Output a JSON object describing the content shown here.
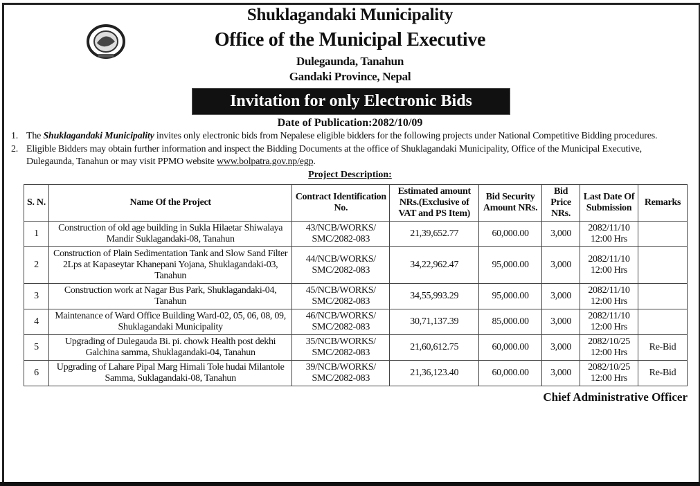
{
  "header": {
    "municipality": "Shuklagandaki Municipality",
    "office": "Office of the Municipal Executive",
    "address_line1": "Dulegaunda, Tanahun",
    "address_line2": "Gandaki Province, Nepal",
    "banner": "Invitation for only Electronic Bids",
    "publication_date": "Date of Publication:2082/10/09"
  },
  "paragraphs": [
    {
      "num": "1.",
      "pre": "The ",
      "emph": "Shuklagandaki Municipality",
      "post": " invites only electronic bids from Nepalese eligible bidders for the following projects under National Competitive Bidding procedures."
    },
    {
      "num": "2.",
      "pre": "Eligible Bidders may obtain further information and inspect the Bidding Documents at the office of Shuklagandaki Municipality, Office of the Municipal Executive, Dulegaunda, Tanahun or may visit PPMO website ",
      "link": "www.bolpatra.gov.np/egp",
      "post": "."
    }
  ],
  "project_description_label": "Project Description:",
  "table": {
    "columns": [
      "S. N.",
      "Name Of the Project",
      "Contract Identification No.",
      "Estimated amount NRs.(Exclusive of VAT and PS Item)",
      "Bid Security Amount NRs.",
      "Bid Price NRs.",
      "Last Date Of Submission",
      "Remarks"
    ],
    "rows": [
      [
        "1",
        "Construction of old  age building  in Sukla Hilaetar Shiwalaya Mandir Suklagandaki-08, Tanahun",
        "43/NCB/WORKS/ SMC/2082-083",
        "21,39,652.77",
        "60,000.00",
        "3,000",
        "2082/11/10 12:00 Hrs",
        ""
      ],
      [
        "2",
        "Construction of Plain Sedimentation Tank and Slow Sand Filter 2Lps at Kapaseytar Khanepani Yojana, Shuklagandaki-03, Tanahun",
        "44/NCB/WORKS/ SMC/2082-083",
        "34,22,962.47",
        "95,000.00",
        "3,000",
        "2082/11/10 12:00 Hrs",
        ""
      ],
      [
        "3",
        "Construction work at Nagar Bus Park, Shuklagandaki-04, Tanahun",
        "45/NCB/WORKS/ SMC/2082-083",
        "34,55,993.29",
        "95,000.00",
        "3,000",
        "2082/11/10 12:00 Hrs",
        ""
      ],
      [
        "4",
        "Maintenance of Ward Office Building Ward-02, 05, 06, 08, 09, Shuklagandaki Municipality",
        "46/NCB/WORKS/ SMC/2082-083",
        "30,71,137.39",
        "85,000.00",
        "3,000",
        "2082/11/10 12:00 Hrs",
        ""
      ],
      [
        "5",
        "Upgrading of Dulegauda Bi. pi. chowk Health post dekhi Galchina samma, Shuklagandaki-04, Tanahun",
        "35/NCB/WORKS/ SMC/2082-083",
        "21,60,612.75",
        "60,000.00",
        "3,000",
        "2082/10/25 12:00 Hrs",
        "Re-Bid"
      ],
      [
        "6",
        "Upgrading of Lahare Pipal Marg Himali Tole hudai Milantole Samma, Suklagandaki-08, Tanahun",
        "39/NCB/WORKS/ SMC/2082-083",
        "21,36,123.40",
        "60,000.00",
        "3,000",
        "2082/10/25 12:00 Hrs",
        "Re-Bid"
      ]
    ]
  },
  "signature": "Chief Administrative Officer",
  "icons": {
    "emblem": "government-emblem"
  }
}
